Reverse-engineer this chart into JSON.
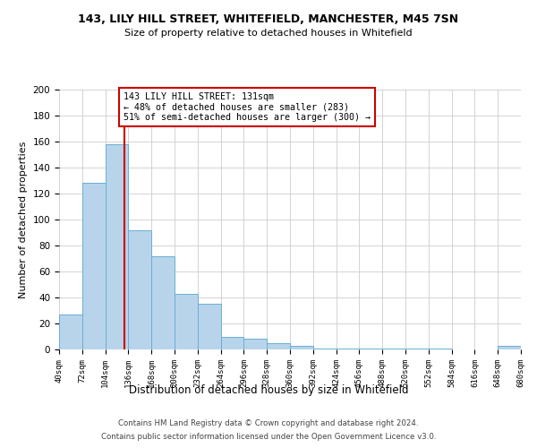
{
  "title": "143, LILY HILL STREET, WHITEFIELD, MANCHESTER, M45 7SN",
  "subtitle": "Size of property relative to detached houses in Whitefield",
  "xlabel": "Distribution of detached houses by size in Whitefield",
  "ylabel": "Number of detached properties",
  "bar_color": "#b8d4ea",
  "bar_edge_color": "#6aaed6",
  "background_color": "#ffffff",
  "grid_color": "#cccccc",
  "annotation_box_color": "#cc0000",
  "vline_color": "#cc0000",
  "bin_edges": [
    40,
    72,
    104,
    136,
    168,
    200,
    232,
    264,
    296,
    328,
    360,
    392,
    424,
    456,
    488,
    520,
    552,
    584,
    616,
    648,
    680
  ],
  "bin_counts": [
    27,
    128,
    158,
    92,
    72,
    43,
    35,
    10,
    8,
    5,
    3,
    1,
    1,
    1,
    1,
    1,
    1,
    0,
    0,
    3
  ],
  "vline_x": 131,
  "annotation_text": "143 LILY HILL STREET: 131sqm\n← 48% of detached houses are smaller (283)\n51% of semi-detached houses are larger (300) →",
  "ylim": [
    0,
    200
  ],
  "yticks": [
    0,
    20,
    40,
    60,
    80,
    100,
    120,
    140,
    160,
    180,
    200
  ],
  "footer_line1": "Contains HM Land Registry data © Crown copyright and database right 2024.",
  "footer_line2": "Contains public sector information licensed under the Open Government Licence v3.0.",
  "tick_labels": [
    "40sqm",
    "72sqm",
    "104sqm",
    "136sqm",
    "168sqm",
    "200sqm",
    "232sqm",
    "264sqm",
    "296sqm",
    "328sqm",
    "360sqm",
    "392sqm",
    "424sqm",
    "456sqm",
    "488sqm",
    "520sqm",
    "552sqm",
    "584sqm",
    "616sqm",
    "648sqm",
    "680sqm"
  ]
}
